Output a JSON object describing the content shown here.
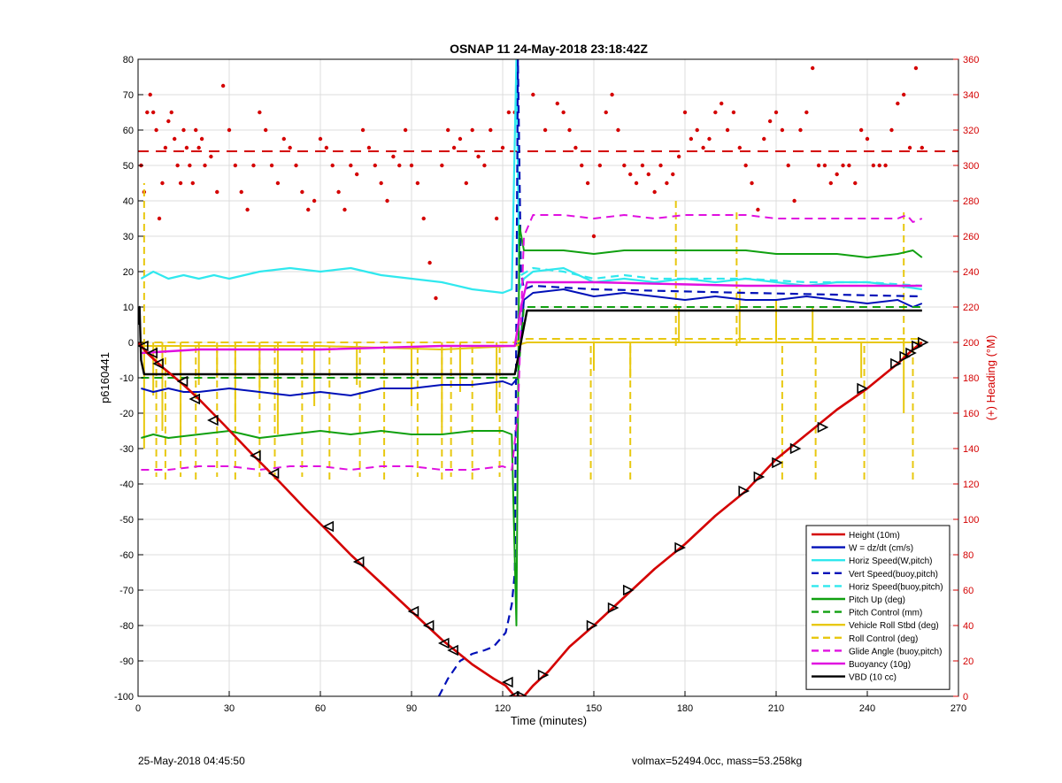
{
  "footer": {
    "left_text": "25-May-2018 04:45:50",
    "right_text": "volmax=52494.0cc, mass=53.258kg"
  },
  "chart_data": {
    "type": "line",
    "title": "OSNAP 11 24-May-2018 23:18:42Z",
    "xlabel": "Time (minutes)",
    "ylabel": "p6160441",
    "y2label": "(+) Heading (°M)",
    "xlim": [
      0,
      270
    ],
    "ylim": [
      -100,
      80
    ],
    "y2lim": [
      0,
      360
    ],
    "x_ticks": [
      0,
      30,
      60,
      90,
      120,
      150,
      180,
      210,
      240,
      270
    ],
    "y_ticks": [
      -100,
      -90,
      -80,
      -70,
      -60,
      -50,
      -40,
      -30,
      -20,
      -10,
      0,
      10,
      20,
      30,
      40,
      50,
      60,
      70,
      80
    ],
    "y2_ticks": [
      0,
      20,
      40,
      60,
      80,
      100,
      120,
      140,
      160,
      180,
      200,
      220,
      240,
      260,
      280,
      300,
      320,
      340,
      360
    ],
    "grid": true,
    "legend_position": "bottom-right",
    "colors": {
      "red": "#d40000",
      "blue": "#0010b8",
      "cyan": "#30e8ee",
      "green": "#10a010",
      "yellow": "#e8c810",
      "magenta": "#e010e0",
      "black": "#000000",
      "right_axis": "#d40000"
    },
    "series": [
      {
        "name": "Height (10m)",
        "color": "red",
        "style": "solid",
        "width": 2.6,
        "x": [
          0,
          3,
          8,
          15,
          20,
          28,
          38,
          45,
          55,
          62,
          70,
          80,
          90,
          100,
          110,
          117,
          121,
          124,
          127,
          130,
          135,
          142,
          150,
          160,
          170,
          180,
          190,
          200,
          210,
          220,
          230,
          240,
          250,
          255,
          258
        ],
        "y": [
          0,
          -3,
          -7,
          -12,
          -16,
          -23,
          -32,
          -38,
          -47,
          -53,
          -60,
          -68,
          -76,
          -84,
          -91,
          -95,
          -97,
          -100,
          -100,
          -97,
          -93,
          -86,
          -80,
          -72,
          -64,
          -57,
          -49,
          -42,
          -33,
          -26,
          -19,
          -13,
          -6,
          -2,
          0
        ]
      },
      {
        "name": "Descent markers",
        "color": "black",
        "style": "marker",
        "marker": "left-triangle",
        "x": [
          2,
          5,
          7,
          15,
          19,
          25,
          39,
          45,
          63,
          73,
          91,
          96,
          101,
          104,
          122,
          124
        ],
        "y": [
          -1,
          -3,
          -6,
          -11,
          -16,
          -22,
          -32,
          -37,
          -52,
          -62,
          -76,
          -80,
          -85,
          -87,
          -96,
          -100
        ]
      },
      {
        "name": "Ascent markers",
        "color": "black",
        "style": "marker",
        "marker": "right-triangle",
        "x": [
          126,
          133,
          149,
          156,
          161,
          178,
          199,
          204,
          210,
          216,
          225,
          238,
          249,
          252,
          254,
          256,
          258
        ],
        "y": [
          -100,
          -94,
          -80,
          -75,
          -70,
          -58,
          -42,
          -38,
          -34,
          -30,
          -24,
          -13,
          -6,
          -4,
          -3,
          -1,
          0
        ]
      },
      {
        "name": "W = dz/dt (cm/s)",
        "color": "blue",
        "style": "solid",
        "width": 2,
        "x": [
          1,
          5,
          10,
          15,
          20,
          30,
          40,
          50,
          60,
          70,
          80,
          90,
          100,
          110,
          120,
          123,
          125,
          127,
          130,
          140,
          150,
          160,
          170,
          180,
          190,
          200,
          210,
          220,
          230,
          240,
          250,
          255,
          258
        ],
        "y": [
          -13,
          -14,
          -13,
          -14,
          -14,
          -13,
          -14,
          -15,
          -14,
          -15,
          -13,
          -13,
          -12,
          -12,
          -11,
          -12,
          -10,
          12,
          14,
          15,
          13,
          14,
          13,
          12,
          13,
          12,
          12,
          13,
          12,
          11,
          12,
          10,
          11
        ]
      },
      {
        "name": "Horiz Speed(W,pitch)",
        "color": "cyan",
        "style": "solid",
        "width": 2.2,
        "x": [
          1,
          5,
          10,
          15,
          20,
          25,
          30,
          40,
          50,
          60,
          70,
          80,
          90,
          100,
          110,
          120,
          123,
          124.5,
          125.5,
          127,
          130,
          140,
          150,
          160,
          170,
          180,
          190,
          200,
          210,
          220,
          230,
          240,
          250,
          258
        ],
        "y": [
          18,
          20,
          18,
          19,
          18,
          19,
          18,
          20,
          21,
          20,
          21,
          19,
          18,
          17,
          15,
          14,
          15,
          80,
          15,
          18,
          20,
          21,
          17,
          18,
          17,
          18,
          17,
          18,
          17,
          16,
          17,
          17,
          16,
          15
        ]
      },
      {
        "name": "Vert Speed(buoy,pitch)",
        "color": "blue",
        "style": "dashed",
        "width": 2.2,
        "x": [
          99,
          102,
          106,
          110,
          114,
          117,
          119,
          121,
          122,
          123,
          124,
          125,
          126,
          127,
          130,
          150,
          200,
          258
        ],
        "y": [
          -100,
          -95,
          -90,
          -88,
          -87,
          -86,
          -84,
          -82,
          -78,
          -74,
          -65,
          80,
          20,
          15,
          16,
          15,
          14,
          13
        ]
      },
      {
        "name": "Horiz Speed(buoy,pitch)",
        "color": "cyan",
        "style": "dashed",
        "width": 2.2,
        "x": [
          126,
          130,
          140,
          150,
          160,
          170,
          180,
          200,
          220,
          240,
          258
        ],
        "y": [
          19,
          21,
          20,
          18,
          19,
          18,
          18,
          18,
          17,
          17,
          16
        ]
      },
      {
        "name": "Pitch Up (deg)",
        "color": "green",
        "style": "solid",
        "width": 2,
        "x": [
          1,
          5,
          10,
          20,
          30,
          40,
          50,
          60,
          70,
          80,
          90,
          100,
          110,
          120,
          123,
          124.5,
          125.5,
          127,
          130,
          140,
          150,
          160,
          170,
          180,
          190,
          200,
          210,
          220,
          230,
          240,
          250,
          255,
          258
        ],
        "y": [
          -27,
          -26,
          -27,
          -26,
          -25,
          -27,
          -26,
          -25,
          -26,
          -25,
          -26,
          -26,
          -25,
          -25,
          -26,
          -80,
          33,
          26,
          26,
          26,
          25,
          26,
          26,
          26,
          26,
          26,
          25,
          25,
          25,
          24,
          25,
          26,
          24
        ]
      },
      {
        "name": "Pitch Control (mm)",
        "color": "green",
        "style": "dashed",
        "width": 2,
        "x": [
          1,
          60,
          125,
          127,
          258
        ],
        "y": [
          -10,
          -10,
          -10,
          10,
          10
        ]
      },
      {
        "name": "Vehicle Roll Stbd (deg)",
        "color": "yellow",
        "style": "solid",
        "width": 2,
        "x": [
          1,
          20,
          60,
          100,
          124,
          128,
          150,
          200,
          258
        ],
        "y": [
          -1,
          -1,
          -1,
          -2,
          -1,
          0,
          0,
          0,
          0
        ]
      },
      {
        "name": "Roll Control (deg)",
        "color": "yellow",
        "style": "dashed",
        "width": 2,
        "x": [
          1,
          60,
          124,
          128,
          258
        ],
        "y": [
          0,
          0,
          0,
          1,
          1
        ]
      },
      {
        "name": "Glide Angle (buoy,pitch)",
        "color": "magenta",
        "style": "dashed",
        "width": 2,
        "x": [
          1,
          10,
          20,
          30,
          40,
          50,
          60,
          70,
          80,
          90,
          100,
          110,
          120,
          123,
          125,
          127,
          130,
          140,
          150,
          160,
          170,
          180,
          190,
          200,
          210,
          220,
          230,
          240,
          250,
          253,
          255,
          258
        ],
        "y": [
          -36,
          -36,
          -35,
          -35,
          -36,
          -35,
          -35,
          -36,
          -35,
          -35,
          -36,
          -36,
          -35,
          -36,
          -20,
          30,
          36,
          36,
          35,
          36,
          35,
          36,
          36,
          36,
          35,
          35,
          35,
          35,
          35,
          36,
          34,
          35
        ]
      },
      {
        "name": "Buoyancy (10g)",
        "color": "magenta",
        "style": "solid",
        "width": 2.4,
        "x": [
          1,
          20,
          60,
          100,
          124,
          126,
          128,
          150,
          200,
          258
        ],
        "y": [
          -3,
          -2,
          -2,
          -1,
          -1,
          10,
          17,
          17,
          16,
          16
        ]
      },
      {
        "name": "VBD (10 cc)",
        "color": "black",
        "style": "solid",
        "width": 2.4,
        "x": [
          0,
          0.5,
          1,
          2,
          40,
          124,
          128,
          258
        ],
        "y": [
          5,
          10,
          -5,
          -9,
          -9,
          -9,
          9,
          9
        ]
      }
    ],
    "heading": {
      "name": "Heading",
      "color": "red",
      "style": "dots",
      "axis": "right",
      "reference_line": 308,
      "x": [
        1,
        2,
        3,
        4,
        5,
        6,
        7,
        8,
        9,
        10,
        11,
        12,
        13,
        14,
        15,
        16,
        17,
        18,
        19,
        20,
        21,
        22,
        24,
        26,
        28,
        30,
        32,
        34,
        36,
        38,
        40,
        42,
        44,
        46,
        48,
        50,
        52,
        54,
        56,
        58,
        60,
        62,
        64,
        66,
        68,
        70,
        72,
        74,
        76,
        78,
        80,
        82,
        84,
        86,
        88,
        90,
        92,
        94,
        96,
        98,
        100,
        102,
        104,
        106,
        108,
        110,
        112,
        114,
        116,
        118,
        120,
        122,
        124,
        130,
        134,
        138,
        140,
        142,
        144,
        146,
        148,
        150,
        152,
        154,
        156,
        158,
        160,
        162,
        164,
        166,
        168,
        170,
        172,
        174,
        176,
        178,
        180,
        182,
        184,
        186,
        188,
        190,
        192,
        194,
        196,
        198,
        200,
        202,
        204,
        206,
        208,
        210,
        212,
        214,
        216,
        218,
        220,
        222,
        224,
        226,
        228,
        230,
        232,
        234,
        236,
        238,
        240,
        242,
        244,
        246,
        248,
        250,
        252,
        254,
        256,
        258
      ],
      "y": [
        300,
        285,
        330,
        340,
        330,
        320,
        270,
        290,
        310,
        325,
        330,
        315,
        300,
        290,
        320,
        310,
        300,
        290,
        320,
        310,
        315,
        300,
        305,
        285,
        345,
        320,
        300,
        285,
        275,
        300,
        330,
        320,
        300,
        290,
        315,
        310,
        300,
        285,
        275,
        280,
        315,
        310,
        300,
        285,
        275,
        300,
        295,
        320,
        310,
        300,
        290,
        280,
        305,
        300,
        320,
        300,
        290,
        270,
        245,
        225,
        300,
        320,
        310,
        315,
        290,
        320,
        305,
        300,
        320,
        270,
        310,
        330,
        330,
        340,
        320,
        335,
        330,
        320,
        310,
        300,
        290,
        260,
        300,
        330,
        340,
        320,
        300,
        295,
        290,
        300,
        295,
        285,
        300,
        290,
        295,
        305,
        330,
        315,
        320,
        310,
        315,
        330,
        335,
        320,
        330,
        310,
        300,
        290,
        275,
        315,
        325,
        330,
        320,
        300,
        280,
        320,
        330,
        355,
        300,
        300,
        290,
        295,
        300,
        300,
        290,
        320,
        315,
        300,
        300,
        300,
        320,
        335,
        340,
        310,
        355,
        310
      ]
    },
    "spikes": {
      "color": "yellow",
      "solid_x": [
        2,
        5,
        8,
        14,
        20,
        26,
        32,
        40,
        46,
        58,
        72,
        90,
        100,
        106,
        118,
        150,
        162,
        178,
        198,
        210,
        222,
        238,
        252
      ],
      "solid_y": [
        -30,
        -15,
        -25,
        -28,
        -12,
        -10,
        -22,
        -14,
        -26,
        -18,
        -12,
        -18,
        -24,
        -14,
        -20,
        -8,
        -10,
        10,
        15,
        12,
        10,
        -10,
        -20
      ],
      "dashed_x": [
        2,
        6,
        9,
        14,
        19,
        26,
        32,
        40,
        45,
        54,
        63,
        73,
        81,
        92,
        100,
        103,
        110,
        119,
        149,
        162,
        177,
        197,
        212,
        223,
        239,
        252,
        255
      ],
      "dashed_y": [
        45,
        -38,
        -40,
        -38,
        -40,
        -38,
        -40,
        -38,
        -40,
        -38,
        -40,
        -38,
        -40,
        -38,
        -40,
        -38,
        -40,
        -38,
        -40,
        -40,
        40,
        38,
        -40,
        -40,
        -40,
        38,
        -40
      ]
    }
  }
}
